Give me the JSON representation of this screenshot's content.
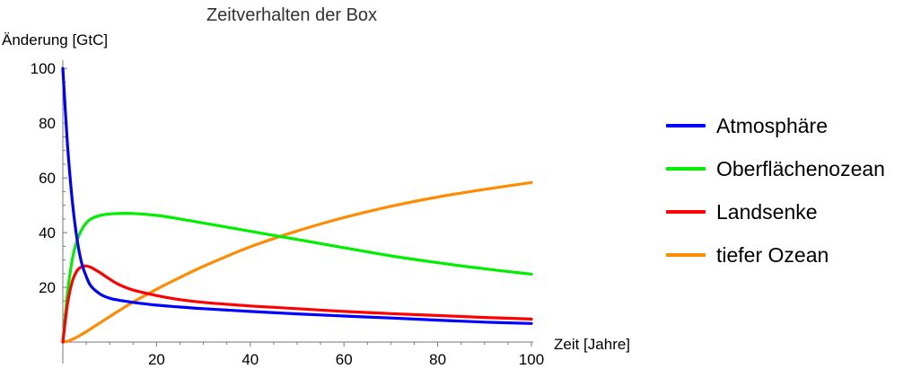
{
  "chart_data": {
    "type": "line",
    "title": "Zeitverhalten der Box",
    "xlabel": "Zeit [Jahre]",
    "ylabel": "Änderung [GtC]",
    "xlim": [
      0,
      100
    ],
    "ylim": [
      0,
      105
    ],
    "x_ticks": [
      20,
      40,
      60,
      80,
      100
    ],
    "y_ticks": [
      20,
      40,
      60,
      80,
      100
    ],
    "grid": false,
    "legend_position": "right",
    "x": [
      0,
      1,
      2,
      3,
      4,
      5,
      6,
      8,
      10,
      12,
      15,
      20,
      25,
      30,
      40,
      50,
      60,
      70,
      80,
      90,
      100
    ],
    "series": [
      {
        "name": "Atmosphäre",
        "color": "#0000ff",
        "values": [
          100,
          72,
          52,
          38,
          29,
          24,
          20.5,
          17.5,
          16,
          15.3,
          14.5,
          13.5,
          12.8,
          12.2,
          11.2,
          10.3,
          9.5,
          8.8,
          8.0,
          7.3,
          6.8
        ]
      },
      {
        "name": "Oberflächenozean",
        "color": "#00ee00",
        "values": [
          0,
          18,
          30,
          37,
          41,
          43.5,
          45,
          46.3,
          46.8,
          47,
          47,
          46.3,
          45,
          43.5,
          40.5,
          37.5,
          34.5,
          31.5,
          29,
          26.8,
          24.8
        ]
      },
      {
        "name": "Landsenke",
        "color": "#ff0000",
        "values": [
          0,
          14,
          22,
          26,
          27.5,
          27.8,
          27.3,
          25.3,
          23,
          21,
          19,
          17,
          15.5,
          14.5,
          13.2,
          12.2,
          11.2,
          10.4,
          9.7,
          9.0,
          8.4
        ]
      },
      {
        "name": "tiefer Ozean",
        "color": "#ff8c00",
        "values": [
          0,
          0.3,
          1,
          1.8,
          2.8,
          3.8,
          4.9,
          7.1,
          9.3,
          11.5,
          14.6,
          19.3,
          23.6,
          27.7,
          34.8,
          40.6,
          45.5,
          49.6,
          53,
          55.8,
          58.3
        ]
      }
    ]
  }
}
